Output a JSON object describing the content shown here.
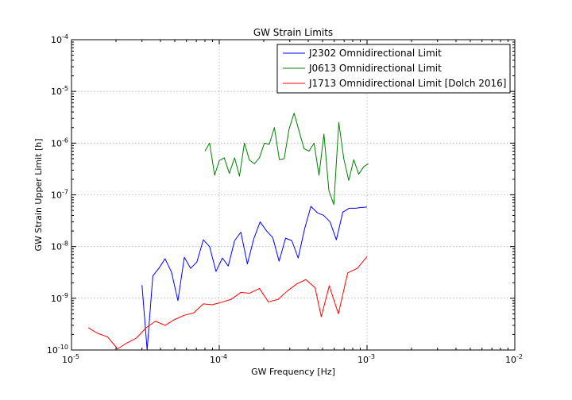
{
  "chart_data": {
    "type": "line",
    "title": "GW Strain Limits",
    "xlabel": "GW Frequency [Hz]",
    "ylabel": "GW Strain Upper Limit [h]",
    "xscale": "log",
    "yscale": "log",
    "xlim": [
      1e-05,
      0.01
    ],
    "ylim": [
      1e-10,
      0.0001
    ],
    "x_tick_labels": [
      {
        "base": "10",
        "exp": "-5"
      },
      {
        "base": "10",
        "exp": "-4"
      },
      {
        "base": "10",
        "exp": "-3"
      },
      {
        "base": "10",
        "exp": "-2"
      }
    ],
    "y_tick_labels": [
      {
        "base": "10",
        "exp": "-10"
      },
      {
        "base": "10",
        "exp": "-9"
      },
      {
        "base": "10",
        "exp": "-8"
      },
      {
        "base": "10",
        "exp": "-7"
      },
      {
        "base": "10",
        "exp": "-6"
      },
      {
        "base": "10",
        "exp": "-5"
      },
      {
        "base": "10",
        "exp": "-4"
      }
    ],
    "grid": true,
    "legend_position": "top-right",
    "series": [
      {
        "name": "J2302 Omnidirectional Limit",
        "color": "#0000ff",
        "x": [
          3e-05,
          3.25e-05,
          3.55e-05,
          3.9e-05,
          4.3e-05,
          4.75e-05,
          5.25e-05,
          5.8e-05,
          6.4e-05,
          7.05e-05,
          7.8e-05,
          8.6e-05,
          9.5e-05,
          0.000105,
          0.000115,
          0.000127,
          0.00014,
          0.000155,
          0.000171,
          0.000189,
          0.000209,
          0.00023,
          0.000254,
          0.000281,
          0.00031,
          0.000342,
          0.000378,
          0.000417,
          0.000461,
          0.000509,
          0.000562,
          0.00062,
          0.000685,
          0.000756,
          0.000835,
          0.000922,
          0.001
        ],
        "y": [
          1.8e-09,
          1e-10,
          2.7e-09,
          3.8e-09,
          5.8e-09,
          3.2e-09,
          9e-10,
          6.2e-09,
          3.8e-09,
          5e-09,
          1.35e-08,
          1e-08,
          3.3e-09,
          6e-09,
          4.2e-09,
          1.3e-08,
          1.9e-08,
          4.6e-09,
          1.4e-08,
          3e-08,
          2e-08,
          1.5e-08,
          5.2e-09,
          1.45e-08,
          1.3e-08,
          6e-09,
          2.2e-08,
          6e-08,
          4.5e-08,
          4e-08,
          3e-08,
          1.35e-08,
          4.6e-08,
          5.5e-08,
          5.5e-08,
          5.7e-08,
          5.8e-08
        ]
      },
      {
        "name": "J0613 Omnidirectional Limit",
        "color": "#008000",
        "x": [
          8e-05,
          8.6e-05,
          9.3e-05,
          0.0001,
          0.000108,
          0.000117,
          0.000127,
          0.000137,
          0.000148,
          0.00016,
          0.000173,
          0.000187,
          0.000202,
          0.000218,
          0.000236,
          0.000255,
          0.000275,
          0.000297,
          0.000321,
          0.000347,
          0.000375,
          0.000405,
          0.000438,
          0.000473,
          0.000511,
          0.000552,
          0.000596,
          0.000644,
          0.000696,
          0.000752,
          0.000813,
          0.000878,
          0.000949,
          0.00102
        ],
        "y": [
          7e-07,
          1e-06,
          2.4e-07,
          4.6e-07,
          5.2e-07,
          2.6e-07,
          5.2e-07,
          2.3e-07,
          1e-06,
          4.7e-07,
          4e-07,
          5.2e-07,
          1e-06,
          9.5e-07,
          2e-06,
          4.8e-07,
          5e-07,
          1.9e-06,
          3.8e-06,
          1.7e-06,
          7.8e-07,
          7e-07,
          1e-06,
          2.4e-07,
          1.5e-06,
          1.2e-07,
          6.5e-08,
          2.5e-06,
          5e-07,
          1.9e-07,
          4.8e-07,
          2.5e-07,
          3.5e-07,
          4e-07
        ]
      },
      {
        "name": "J1713 Omnidirectional Limit [Dolch 2016]",
        "color": "#ff0000",
        "x": [
          1.3e-05,
          1.5e-05,
          1.75e-05,
          2.05e-05,
          2.35e-05,
          2.75e-05,
          3.2e-05,
          3.7e-05,
          4.3e-05,
          5e-05,
          5.8e-05,
          6.7e-05,
          7.8e-05,
          9e-05,
          0.000105,
          0.00012,
          0.00014,
          0.00016,
          0.000187,
          0.000215,
          0.00025,
          0.00029,
          0.000335,
          0.000385,
          0.000445,
          0.00049,
          0.000555,
          0.00064,
          0.00074,
          0.00086,
          0.001
        ],
        "y": [
          2.7e-10,
          2.1e-10,
          1.8e-10,
          1.05e-10,
          1.35e-10,
          1.7e-10,
          2.7e-10,
          3.6e-10,
          3e-10,
          3.9e-10,
          4.7e-10,
          5.2e-10,
          7.8e-10,
          7.5e-10,
          8.5e-10,
          9.5e-10,
          1.3e-09,
          1.25e-09,
          1.55e-09,
          8.5e-10,
          9.5e-10,
          1.4e-09,
          1.9e-09,
          2.3e-09,
          1.6e-09,
          4.4e-10,
          1.75e-09,
          5e-10,
          3.1e-09,
          3.8e-09,
          6.4e-09
        ]
      }
    ]
  }
}
